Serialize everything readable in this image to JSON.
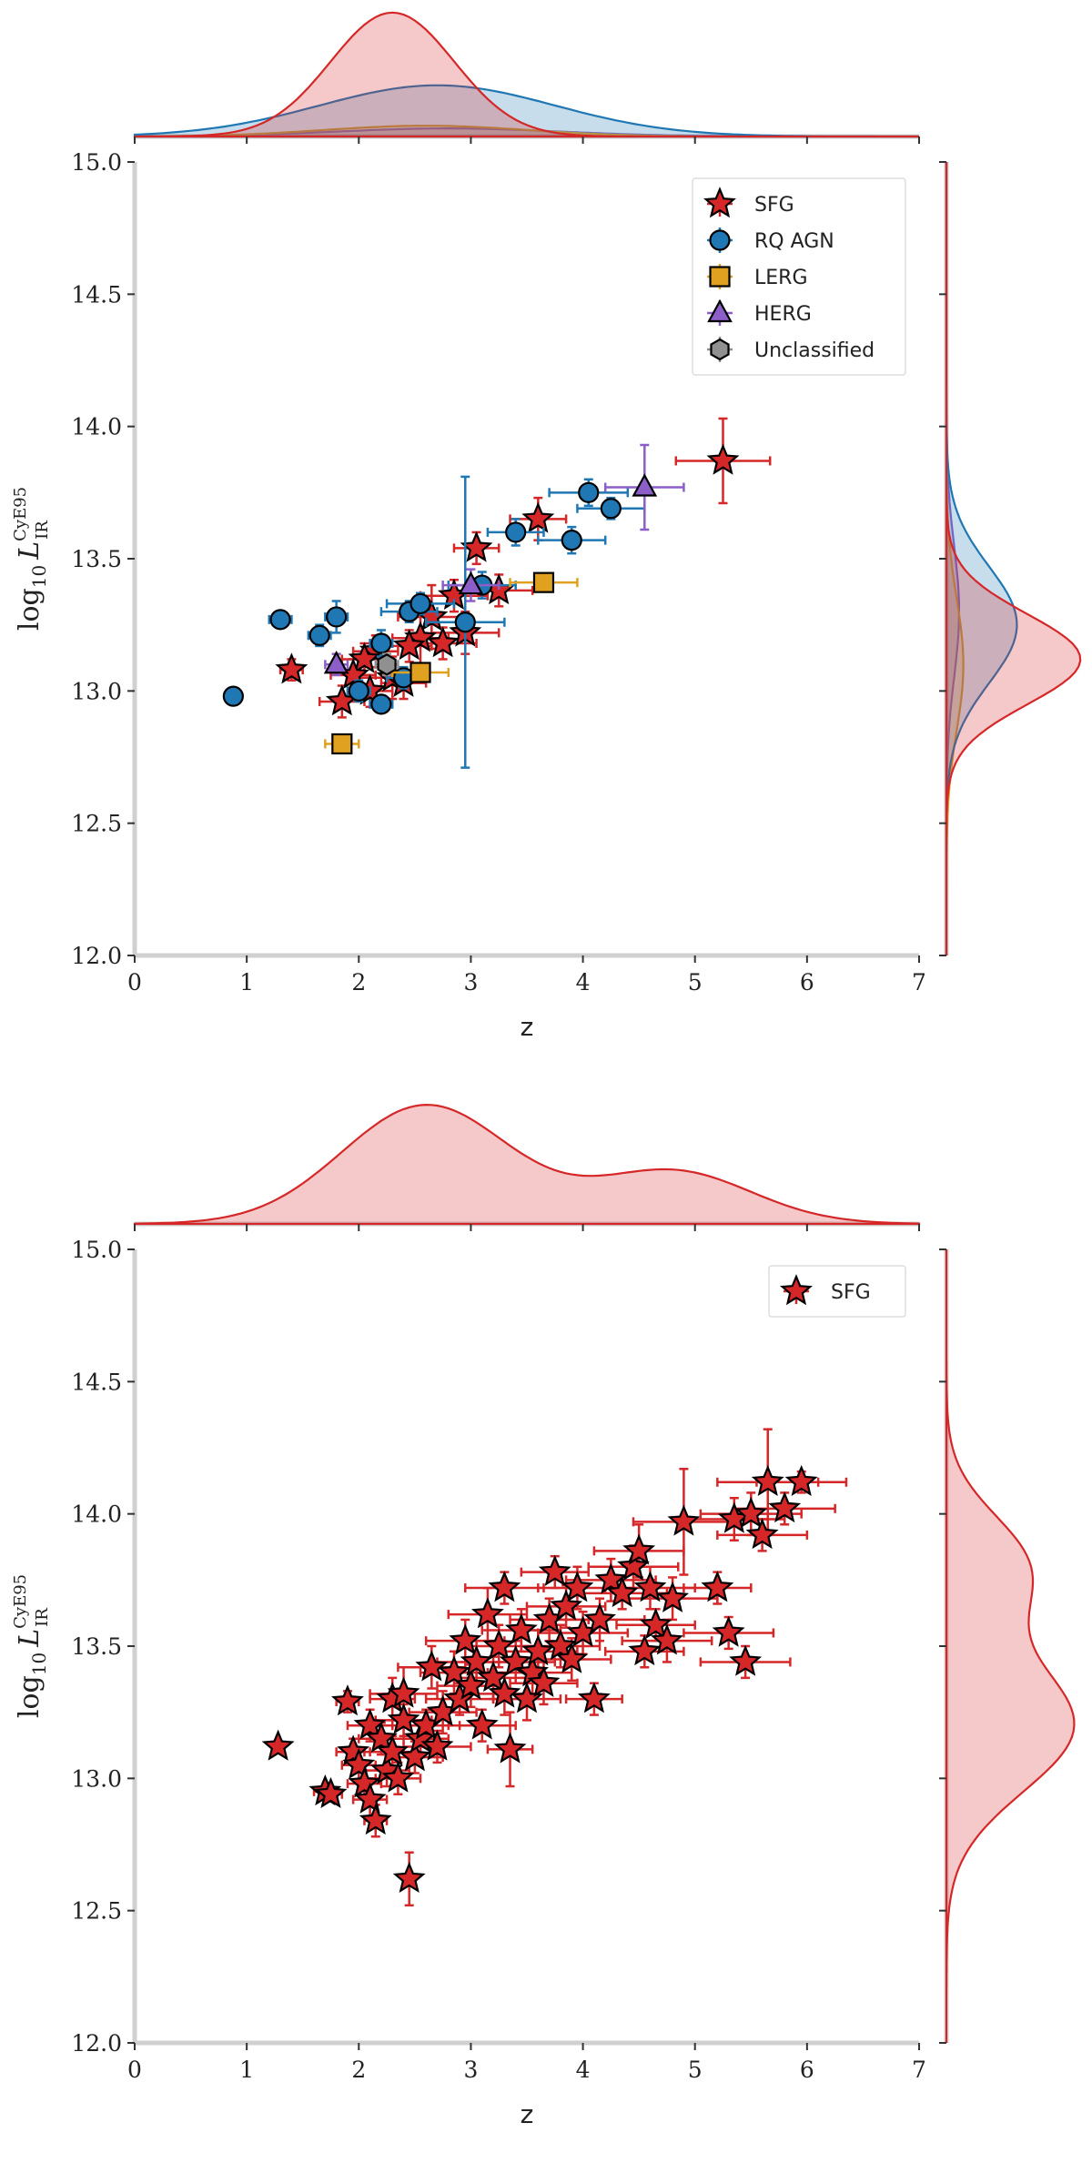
{
  "figure_title": "",
  "chart_data": [
    {
      "type": "scatter",
      "panel": "top",
      "xlabel": "z",
      "ylabel_prefix": "log",
      "ylabel_sub": "10",
      "ylabel_symbol": "L",
      "ylabel_sup": "CyE95",
      "ylabel_symbol_sub": "IR",
      "xlim": [
        0,
        7
      ],
      "ylim": [
        12.0,
        15.0
      ],
      "xticks": [
        "0",
        "1",
        "2",
        "3",
        "4",
        "5",
        "6",
        "7"
      ],
      "yticks": [
        "12.0",
        "12.5",
        "13.0",
        "13.5",
        "14.0",
        "14.5",
        "15.0"
      ],
      "legend_position": "top-right",
      "series": [
        {
          "name": "SFG",
          "marker": "star",
          "color": "#d62728",
          "points": [
            [
              5.25,
              13.87
            ],
            [
              3.6,
              13.65
            ],
            [
              3.05,
              13.54
            ],
            [
              3.25,
              13.38
            ],
            [
              2.85,
              13.36
            ],
            [
              2.65,
              13.28
            ],
            [
              2.55,
              13.2
            ],
            [
              2.45,
              13.17
            ],
            [
              2.75,
              13.18
            ],
            [
              2.15,
              13.15
            ],
            [
              2.05,
              13.12
            ],
            [
              1.4,
              13.08
            ],
            [
              1.95,
              13.06
            ],
            [
              2.3,
              13.05
            ],
            [
              2.4,
              13.03
            ],
            [
              1.85,
              12.96
            ],
            [
              2.95,
              13.22
            ],
            [
              2.1,
              13.0
            ]
          ],
          "xerr": [
            0.42,
            0.25,
            0.2,
            0.3,
            0.3,
            0.3,
            0.25,
            0.2,
            0.3,
            0.2,
            0.2,
            0.1,
            0.2,
            0.3,
            0.2,
            0.2,
            0.3,
            0.2
          ],
          "yerr": [
            0.16,
            0.08,
            0.06,
            0.06,
            0.06,
            0.12,
            0.1,
            0.06,
            0.06,
            0.06,
            0.06,
            0.04,
            0.06,
            0.08,
            0.06,
            0.06,
            0.08,
            0.06
          ]
        },
        {
          "name": "RQ AGN",
          "marker": "circle",
          "color": "#1f77b4",
          "points": [
            [
              0.88,
              12.98
            ],
            [
              1.3,
              13.27
            ],
            [
              1.65,
              13.21
            ],
            [
              1.8,
              13.28
            ],
            [
              2.0,
              13.0
            ],
            [
              2.2,
              13.18
            ],
            [
              2.2,
              12.95
            ],
            [
              2.4,
              13.05
            ],
            [
              2.45,
              13.3
            ],
            [
              2.55,
              13.33
            ],
            [
              2.95,
              13.26
            ],
            [
              3.1,
              13.4
            ],
            [
              3.4,
              13.6
            ],
            [
              3.9,
              13.57
            ],
            [
              4.05,
              13.75
            ],
            [
              4.25,
              13.69
            ]
          ],
          "xerr": [
            0.05,
            0.1,
            0.1,
            0.1,
            0.1,
            0.1,
            0.1,
            0.15,
            0.25,
            0.3,
            0.35,
            0.3,
            0.25,
            0.3,
            0.35,
            0.3
          ],
          "yerr": [
            0.02,
            0.02,
            0.04,
            0.06,
            0.04,
            0.05,
            0.03,
            0.04,
            0.04,
            0.04,
            0.55,
            0.05,
            0.05,
            0.05,
            0.05,
            0.04
          ]
        },
        {
          "name": "LERG",
          "marker": "square",
          "color": "#e0a020",
          "points": [
            [
              1.85,
              12.8
            ],
            [
              2.55,
              13.07
            ],
            [
              3.65,
              13.41
            ]
          ],
          "xerr": [
            0.15,
            0.25,
            0.3
          ],
          "yerr": [
            0.02,
            0.03,
            0.03
          ]
        },
        {
          "name": "HERG",
          "marker": "triangle",
          "color": "#8c5fc8",
          "points": [
            [
              1.8,
              13.1
            ],
            [
              3.0,
              13.4
            ],
            [
              4.55,
              13.77
            ]
          ],
          "xerr": [
            0.1,
            0.25,
            0.35
          ],
          "yerr": [
            0.04,
            0.06,
            0.16
          ]
        },
        {
          "name": "Unclassified",
          "marker": "hexagon",
          "color": "#909090",
          "points": [
            [
              2.25,
              13.1
            ]
          ],
          "xerr": [
            0.1
          ],
          "yerr": [
            0.04
          ]
        }
      ],
      "kde_top": [
        {
          "name": "SFG",
          "color": "#d62728",
          "mean": 2.3,
          "sd": 0.55,
          "peak": 0.92
        },
        {
          "name": "RQ AGN",
          "color": "#1f77b4",
          "mean": 2.7,
          "sd": 1.05,
          "peak": 0.38
        },
        {
          "name": "LERG",
          "color": "#e0a020",
          "mean": 2.6,
          "sd": 0.9,
          "peak": 0.08
        },
        {
          "name": "HERG",
          "color": "#8c5fc8",
          "mean": 2.8,
          "sd": 1.0,
          "peak": 0.06
        }
      ],
      "kde_right": [
        {
          "name": "SFG",
          "color": "#d62728",
          "mean": 13.12,
          "sd": 0.17,
          "peak": 0.95
        },
        {
          "name": "RQ AGN",
          "color": "#1f77b4",
          "mean": 13.25,
          "sd": 0.22,
          "peak": 0.5
        },
        {
          "name": "LERG",
          "color": "#e0a020",
          "mean": 13.1,
          "sd": 0.25,
          "peak": 0.12
        },
        {
          "name": "HERG",
          "color": "#8c5fc8",
          "mean": 13.3,
          "sd": 0.25,
          "peak": 0.09
        }
      ]
    },
    {
      "type": "scatter",
      "panel": "bottom",
      "xlabel": "z",
      "ylabel_prefix": "log",
      "ylabel_sub": "10",
      "ylabel_symbol": "L",
      "ylabel_sup": "CyE95",
      "ylabel_symbol_sub": "IR",
      "xlim": [
        0,
        7
      ],
      "ylim": [
        12.0,
        15.0
      ],
      "xticks": [
        "0",
        "1",
        "2",
        "3",
        "4",
        "5",
        "6",
        "7"
      ],
      "yticks": [
        "12.0",
        "12.5",
        "13.0",
        "13.5",
        "14.0",
        "14.5",
        "15.0"
      ],
      "legend_position": "top-right",
      "series": [
        {
          "name": "SFG",
          "marker": "star",
          "color": "#d62728",
          "points": [
            [
              1.28,
              13.12
            ],
            [
              1.7,
              12.95
            ],
            [
              1.75,
              12.94
            ],
            [
              1.9,
              13.29
            ],
            [
              1.95,
              13.1
            ],
            [
              2.0,
              13.05
            ],
            [
              2.05,
              12.98
            ],
            [
              2.1,
              12.92
            ],
            [
              2.1,
              13.2
            ],
            [
              2.15,
              12.84
            ],
            [
              2.2,
              13.15
            ],
            [
              2.25,
              13.03
            ],
            [
              2.3,
              13.3
            ],
            [
              2.3,
              13.1
            ],
            [
              2.35,
              13.0
            ],
            [
              2.4,
              13.22
            ],
            [
              2.4,
              13.32
            ],
            [
              2.45,
              12.62
            ],
            [
              2.5,
              13.08
            ],
            [
              2.55,
              13.15
            ],
            [
              2.6,
              13.2
            ],
            [
              2.65,
              13.42
            ],
            [
              2.7,
              13.12
            ],
            [
              2.75,
              13.25
            ],
            [
              2.85,
              13.4
            ],
            [
              2.9,
              13.3
            ],
            [
              2.95,
              13.52
            ],
            [
              3.0,
              13.35
            ],
            [
              3.05,
              13.44
            ],
            [
              3.1,
              13.2
            ],
            [
              3.15,
              13.62
            ],
            [
              3.2,
              13.38
            ],
            [
              3.25,
              13.5
            ],
            [
              3.3,
              13.32
            ],
            [
              3.3,
              13.72
            ],
            [
              3.35,
              13.11
            ],
            [
              3.4,
              13.44
            ],
            [
              3.45,
              13.56
            ],
            [
              3.5,
              13.3
            ],
            [
              3.55,
              13.4
            ],
            [
              3.6,
              13.48
            ],
            [
              3.65,
              13.36
            ],
            [
              3.7,
              13.6
            ],
            [
              3.75,
              13.78
            ],
            [
              3.8,
              13.5
            ],
            [
              3.85,
              13.65
            ],
            [
              3.9,
              13.45
            ],
            [
              3.95,
              13.72
            ],
            [
              4.0,
              13.55
            ],
            [
              4.1,
              13.3
            ],
            [
              4.15,
              13.6
            ],
            [
              4.25,
              13.75
            ],
            [
              4.35,
              13.7
            ],
            [
              4.45,
              13.8
            ],
            [
              4.5,
              13.86
            ],
            [
              4.55,
              13.48
            ],
            [
              4.6,
              13.72
            ],
            [
              4.65,
              13.58
            ],
            [
              4.75,
              13.52
            ],
            [
              4.8,
              13.68
            ],
            [
              4.9,
              13.97
            ],
            [
              5.2,
              13.72
            ],
            [
              5.3,
              13.55
            ],
            [
              5.35,
              13.98
            ],
            [
              5.45,
              13.44
            ],
            [
              5.5,
              14.0
            ],
            [
              5.6,
              13.92
            ],
            [
              5.65,
              14.12
            ],
            [
              5.8,
              14.02
            ],
            [
              5.95,
              14.12
            ]
          ],
          "xerr": [
            0.05,
            0.1,
            0.1,
            0.1,
            0.15,
            0.15,
            0.15,
            0.15,
            0.2,
            0.1,
            0.2,
            0.2,
            0.2,
            0.25,
            0.2,
            0.25,
            0.3,
            0.05,
            0.25,
            0.25,
            0.3,
            0.3,
            0.3,
            0.3,
            0.3,
            0.3,
            0.35,
            0.3,
            0.35,
            0.3,
            0.35,
            0.3,
            0.35,
            0.3,
            0.35,
            0.2,
            0.35,
            0.35,
            0.3,
            0.35,
            0.35,
            0.3,
            0.35,
            0.3,
            0.35,
            0.35,
            0.35,
            0.35,
            0.4,
            0.25,
            0.4,
            0.4,
            0.4,
            0.4,
            0.4,
            0.35,
            0.4,
            0.35,
            0.4,
            0.4,
            0.45,
            0.3,
            0.4,
            0.45,
            0.4,
            0.45,
            0.4,
            0.45,
            0.45,
            0.4
          ],
          "yerr": [
            0.02,
            0.02,
            0.02,
            0.04,
            0.05,
            0.06,
            0.05,
            0.08,
            0.06,
            0.06,
            0.06,
            0.06,
            0.08,
            0.06,
            0.06,
            0.06,
            0.1,
            0.1,
            0.06,
            0.06,
            0.06,
            0.08,
            0.06,
            0.08,
            0.08,
            0.06,
            0.08,
            0.08,
            0.08,
            0.06,
            0.1,
            0.08,
            0.08,
            0.08,
            0.06,
            0.14,
            0.08,
            0.08,
            0.08,
            0.08,
            0.08,
            0.08,
            0.08,
            0.06,
            0.08,
            0.08,
            0.08,
            0.08,
            0.08,
            0.06,
            0.08,
            0.08,
            0.06,
            0.08,
            0.1,
            0.06,
            0.08,
            0.06,
            0.08,
            0.08,
            0.2,
            0.06,
            0.06,
            0.08,
            0.06,
            0.08,
            0.06,
            0.2,
            0.06,
            0.04
          ]
        }
      ],
      "kde_top": [
        {
          "name": "SFG",
          "color": "#d62728",
          "mean": 2.6,
          "sd": 0.75,
          "peak": 0.9,
          "mean2": 4.8,
          "sd2": 0.7,
          "peak2": 0.4
        }
      ],
      "kde_right": [
        {
          "name": "SFG",
          "color": "#d62728",
          "mean": 13.2,
          "sd": 0.25,
          "peak": 0.9,
          "mean2": 13.8,
          "sd2": 0.2,
          "peak2": 0.55
        }
      ]
    }
  ]
}
